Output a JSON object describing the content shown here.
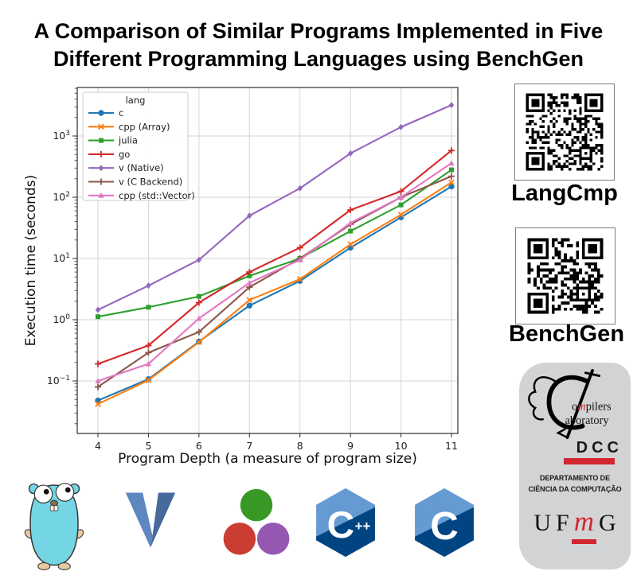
{
  "title": {
    "line1": "A Comparison of Similar Programs Implemented in Five",
    "line2": "Different Programming Languages using BenchGen"
  },
  "chart_data": {
    "type": "line",
    "title": "",
    "xlabel": "Program Depth (a measure of program size)",
    "ylabel": "Execution time (seconds)",
    "yscale": "log",
    "ylim": [
      0.014,
      6000
    ],
    "xlim": [
      3.65,
      11.35
    ],
    "grid": true,
    "legend_title": "lang",
    "legend_position": "upper left",
    "x": [
      4,
      5,
      6,
      7,
      8,
      9,
      10,
      11
    ],
    "ytick_exponents": [
      -1,
      0,
      1,
      2,
      3
    ],
    "series": [
      {
        "name": "c",
        "color": "#1f77b4",
        "marker": "circle",
        "values": [
          0.048,
          0.107,
          0.44,
          1.7,
          4.3,
          15,
          47,
          150
        ]
      },
      {
        "name": "cpp (Array)",
        "color": "#ff7f0e",
        "marker": "x",
        "values": [
          0.042,
          0.103,
          0.43,
          2.1,
          4.6,
          17,
          52,
          175
        ]
      },
      {
        "name": "julia",
        "color": "#2ca02c",
        "marker": "square",
        "values": [
          1.12,
          1.6,
          2.4,
          5.2,
          10,
          28,
          75,
          280
        ]
      },
      {
        "name": "go",
        "color": "#d62728",
        "marker": "plus",
        "values": [
          0.19,
          0.38,
          1.9,
          6.0,
          15,
          62,
          125,
          580
        ]
      },
      {
        "name": "v (Native)",
        "color": "#9467bd",
        "marker": "diamond",
        "values": [
          1.45,
          3.6,
          9.5,
          50,
          140,
          520,
          1400,
          3200
        ]
      },
      {
        "name": "v (C Backend)",
        "color": "#8c564b",
        "marker": "plus",
        "values": [
          0.08,
          0.29,
          0.63,
          3.4,
          10,
          36,
          100,
          220
        ]
      },
      {
        "name": "cpp (std::Vector)",
        "color": "#e377c2",
        "marker": "triangle",
        "values": [
          0.1,
          0.19,
          1.05,
          4.0,
          9.5,
          38,
          100,
          360
        ]
      }
    ]
  },
  "qr_sections": [
    {
      "label": "LangCmp"
    },
    {
      "label": "BenchGen"
    }
  ],
  "badge": {
    "lab_o": "o",
    "lab_m": "m",
    "lab_rest": "pilers",
    "lab_line2": "aboratory",
    "dcc": "DCC",
    "dept_line1": "DEPARTAMENTO DE",
    "dept_line2": "CIÊNCIA DA COMPUTAÇÃO",
    "ufmg_u": "U",
    "ufmg_f": "F",
    "ufmg_m": "m",
    "ufmg_g": "G"
  },
  "logos": [
    {
      "name": "Go"
    },
    {
      "name": "V"
    },
    {
      "name": "Julia"
    },
    {
      "name": "C++"
    },
    {
      "name": "C"
    }
  ],
  "brand_colors": {
    "accent_red": "#d22630",
    "go_body": "#74d6e4",
    "v_light": "#5d87bf",
    "v_dark": "#47699b",
    "julia_green": "#389826",
    "julia_red": "#cb3c33",
    "julia_purple": "#9558b2",
    "cpp_light": "#659ad2",
    "cpp_dark": "#004482"
  }
}
